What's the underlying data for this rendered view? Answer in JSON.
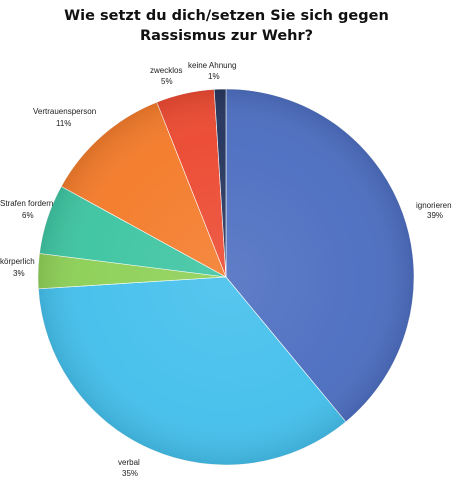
{
  "chart_data": {
    "type": "pie",
    "title_lines": [
      "Wie setzt du dich/setzen Sie sich gegen",
      "Rassismus zur Wehr?"
    ],
    "start_angle_deg": 0,
    "direction": "clockwise",
    "slices": [
      {
        "label": "ignorieren",
        "value_text": "39%",
        "value": 39,
        "color": "#4e6fc1"
      },
      {
        "label": "verbal",
        "value_text": "35%",
        "value": 35,
        "color": "#45c0ec"
      },
      {
        "label": "körperlich",
        "value_text": "3%",
        "value": 3,
        "color": "#8ed058"
      },
      {
        "label": "Strafen fordern",
        "value_text": "6%",
        "value": 6,
        "color": "#3fc5a2"
      },
      {
        "label": "Vertrauensperson",
        "value_text": "11%",
        "value": 11,
        "color": "#f47c2c"
      },
      {
        "label": "zwecklos",
        "value_text": "5%",
        "value": 5,
        "color": "#ec4b33"
      },
      {
        "label": "keine Ahnung",
        "value_text": "1%",
        "value": 1,
        "color": "#26365e"
      }
    ]
  }
}
